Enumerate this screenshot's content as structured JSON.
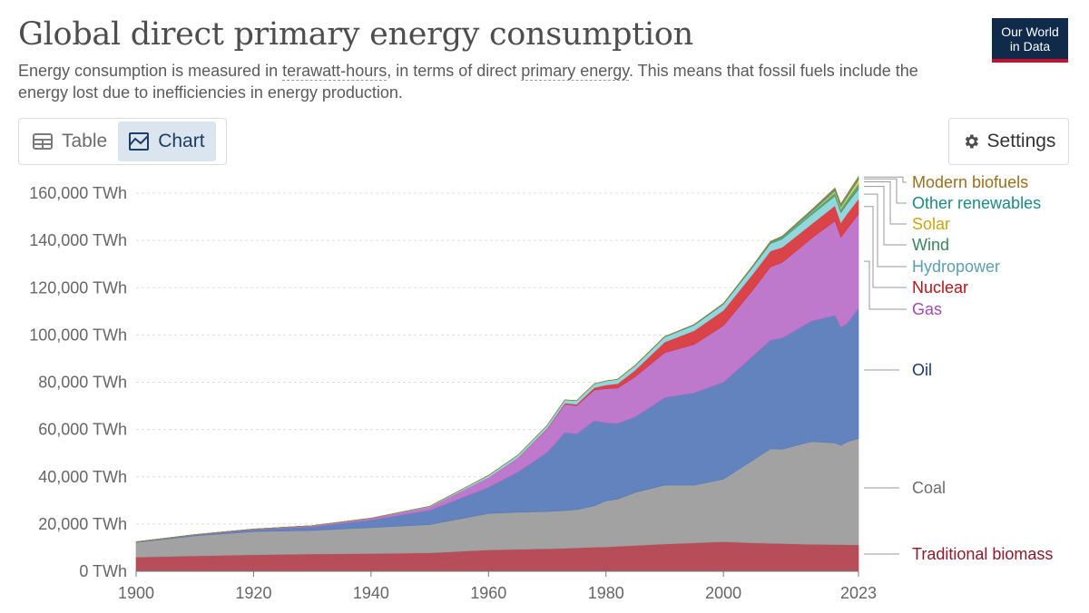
{
  "header": {
    "title": "Global direct primary energy consumption",
    "subtitle_pre": "Energy consumption is measured in ",
    "subtitle_link1": "terawatt-hours",
    "subtitle_mid": ", in terms of direct ",
    "subtitle_link2": "primary energy",
    "subtitle_post": ". This means that fossil fuels include the energy lost due to inefficiencies in energy production.",
    "logo_line1": "Our World",
    "logo_line2": "in Data"
  },
  "controls": {
    "table_label": "Table",
    "chart_label": "Chart",
    "settings_label": "Settings",
    "table_icon": "table-icon",
    "chart_icon": "chart-icon",
    "settings_icon": "gear-icon"
  },
  "chart_data": {
    "type": "area",
    "stacked": true,
    "x": [
      1900,
      1910,
      1920,
      1930,
      1940,
      1950,
      1960,
      1965,
      1970,
      1973,
      1975,
      1978,
      1980,
      1982,
      1985,
      1990,
      1995,
      2000,
      2005,
      2008,
      2010,
      2015,
      2019,
      2020,
      2021,
      2023
    ],
    "y_ticks": [
      "0 TWh",
      "20,000 TWh",
      "40,000 TWh",
      "60,000 TWh",
      "80,000 TWh",
      "100,000 TWh",
      "120,000 TWh",
      "140,000 TWh",
      "160,000 TWh"
    ],
    "y_tick_values": [
      0,
      20000,
      40000,
      60000,
      80000,
      100000,
      120000,
      140000,
      160000
    ],
    "x_ticks": [
      "1900",
      "1920",
      "1940",
      "1960",
      "1980",
      "2000",
      "2023"
    ],
    "x_tick_values": [
      1900,
      1920,
      1940,
      1960,
      1980,
      2000,
      2023
    ],
    "ylim": [
      0,
      165000
    ],
    "xlim": [
      1900,
      2023
    ],
    "grid": true,
    "series": [
      {
        "name": "Traditional biomass",
        "color": "#b13e4a",
        "label_color": "#8e1a2a",
        "values": [
          6000,
          6500,
          7000,
          7300,
          7500,
          7800,
          9000,
          9300,
          9500,
          9700,
          9900,
          10200,
          10300,
          10600,
          10900,
          11500,
          12000,
          12500,
          12000,
          11800,
          11700,
          11400,
          11300,
          11300,
          11200,
          11200
        ]
      },
      {
        "name": "Coal",
        "color": "#9a9a9a",
        "label_color": "#6d6d6d",
        "values": [
          6200,
          8500,
          9800,
          10000,
          11000,
          12000,
          15500,
          15700,
          15800,
          16000,
          16200,
          17500,
          19500,
          20000,
          22500,
          25000,
          24500,
          26500,
          35000,
          40000,
          40000,
          43500,
          43000,
          42000,
          43500,
          45000
        ]
      },
      {
        "name": "Oil",
        "color": "#5678b8",
        "label_color": "#1b3a6b",
        "values": [
          200,
          400,
          800,
          1500,
          3200,
          6000,
          11000,
          17000,
          25000,
          33000,
          32000,
          36000,
          33000,
          32000,
          32000,
          37000,
          39000,
          41000,
          44000,
          46000,
          47000,
          51000,
          54000,
          50000,
          50000,
          55000
        ]
      },
      {
        "name": "Gas",
        "color": "#b86cc8",
        "label_color": "#a04ab1",
        "values": [
          100,
          150,
          300,
          500,
          700,
          1400,
          4200,
          6000,
          10000,
          12000,
          12000,
          13000,
          14500,
          15000,
          17000,
          19000,
          20500,
          24000,
          28000,
          31000,
          32000,
          35000,
          40000,
          38000,
          40000,
          40000
        ]
      },
      {
        "name": "Nuclear",
        "color": "#d7343a",
        "label_color": "#b8141a",
        "values": [
          0,
          0,
          0,
          0,
          0,
          0,
          10,
          60,
          200,
          450,
          600,
          1000,
          1500,
          1800,
          2800,
          4500,
          5800,
          6400,
          6800,
          6700,
          6400,
          6000,
          6400,
          6200,
          6400,
          6300
        ]
      },
      {
        "name": "Hydropower",
        "color": "#8ad3d9",
        "label_color": "#5b9fb0",
        "values": [
          0,
          0,
          0,
          0,
          100,
          300,
          900,
          1100,
          1300,
          1400,
          1500,
          1600,
          1700,
          1800,
          1900,
          2100,
          2300,
          2600,
          2900,
          3100,
          3400,
          3900,
          4100,
          4200,
          4200,
          4200
        ]
      },
      {
        "name": "Wind",
        "color": "#4a9b6e",
        "label_color": "#39875b",
        "values": [
          0,
          0,
          0,
          0,
          0,
          0,
          0,
          0,
          0,
          0,
          0,
          0,
          0,
          0,
          0,
          10,
          20,
          30,
          100,
          200,
          350,
          800,
          1400,
          1600,
          1800,
          2300
        ]
      },
      {
        "name": "Solar",
        "color": "#e8c53a",
        "label_color": "#c9a514",
        "values": [
          0,
          0,
          0,
          0,
          0,
          0,
          0,
          0,
          0,
          0,
          0,
          0,
          0,
          0,
          0,
          0,
          0,
          0,
          5,
          20,
          60,
          250,
          700,
          850,
          1000,
          1600
        ]
      },
      {
        "name": "Other renewables",
        "color": "#2aa3a3",
        "label_color": "#1a8a8a",
        "values": [
          0,
          0,
          0,
          0,
          0,
          0,
          0,
          0,
          10,
          20,
          30,
          50,
          70,
          90,
          130,
          200,
          250,
          300,
          400,
          500,
          550,
          700,
          800,
          850,
          850,
          900
        ]
      },
      {
        "name": "Modern biofuels",
        "color": "#a07a2e",
        "label_color": "#9b6f1d",
        "values": [
          0,
          0,
          0,
          0,
          0,
          0,
          0,
          0,
          0,
          0,
          0,
          0,
          20,
          40,
          60,
          80,
          90,
          100,
          170,
          300,
          350,
          420,
          520,
          480,
          520,
          580
        ]
      }
    ],
    "legend_placement": "right"
  }
}
